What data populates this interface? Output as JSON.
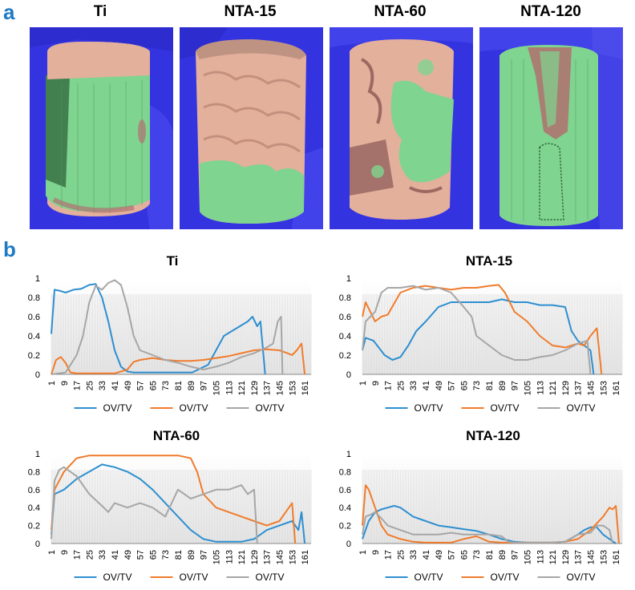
{
  "panel_a": {
    "letter": "a",
    "images": [
      {
        "title": "Ti"
      },
      {
        "title": "NTA-15"
      },
      {
        "title": "NTA-60"
      },
      {
        "title": "NTA-120"
      }
    ]
  },
  "panel_b": {
    "letter": "b"
  },
  "colors": {
    "series1": "#2e8fd0",
    "series2": "#f07c2c",
    "series3": "#a6a6a6",
    "scan_bg": "#3433e0",
    "tissue_green": "#7fd48f",
    "tissue_pink": "#e3b09c"
  },
  "chart_data": [
    {
      "type": "line",
      "title": "Ti",
      "x_ticks": [
        "1",
        "9",
        "17",
        "25",
        "33",
        "41",
        "49",
        "57",
        "65",
        "73",
        "81",
        "89",
        "97",
        "105",
        "113",
        "121",
        "129",
        "137",
        "145",
        "153",
        "161"
      ],
      "y_ticks": [
        "0",
        "0.2",
        "0.4",
        "0.6",
        "0.8",
        "1"
      ],
      "ylim": [
        0,
        1
      ],
      "xlim": [
        1,
        165
      ],
      "series": [
        {
          "name": "OV/TV",
          "x": [
            1,
            3,
            6,
            10,
            15,
            20,
            25,
            29,
            33,
            37,
            41,
            45,
            49,
            53,
            60,
            70,
            80,
            90,
            100,
            110,
            115,
            120,
            125,
            128,
            131,
            133,
            136
          ],
          "values": [
            0.42,
            0.88,
            0.87,
            0.85,
            0.88,
            0.89,
            0.93,
            0.94,
            0.8,
            0.55,
            0.25,
            0.08,
            0.03,
            0.02,
            0.02,
            0.02,
            0.02,
            0.02,
            0.1,
            0.4,
            0.45,
            0.5,
            0.55,
            0.6,
            0.5,
            0.55,
            0
          ]
        },
        {
          "name": "OV/TV",
          "x": [
            1,
            4,
            7,
            10,
            13,
            17,
            25,
            33,
            41,
            49,
            53,
            57,
            65,
            73,
            81,
            89,
            97,
            105,
            113,
            121,
            129,
            137,
            145,
            150,
            153,
            156,
            159,
            161
          ],
          "values": [
            0,
            0.15,
            0.18,
            0.12,
            0.02,
            0.01,
            0.01,
            0.01,
            0.01,
            0.05,
            0.13,
            0.15,
            0.17,
            0.15,
            0.14,
            0.14,
            0.15,
            0.17,
            0.19,
            0.22,
            0.25,
            0.26,
            0.25,
            0.22,
            0.2,
            0.25,
            0.32,
            0
          ]
        },
        {
          "name": "OV/TV",
          "x": [
            1,
            10,
            17,
            21,
            25,
            29,
            33,
            37,
            41,
            45,
            49,
            53,
            57,
            65,
            73,
            81,
            89,
            97,
            105,
            113,
            121,
            129,
            137,
            141,
            144,
            146,
            147
          ],
          "values": [
            0,
            0.02,
            0.2,
            0.4,
            0.75,
            0.92,
            0.88,
            0.95,
            0.98,
            0.93,
            0.7,
            0.4,
            0.25,
            0.2,
            0.15,
            0.12,
            0.08,
            0.05,
            0.08,
            0.12,
            0.18,
            0.22,
            0.28,
            0.32,
            0.55,
            0.6,
            0
          ]
        }
      ]
    },
    {
      "type": "line",
      "title": "NTA-15",
      "x_ticks": [
        "1",
        "9",
        "17",
        "25",
        "33",
        "41",
        "49",
        "57",
        "65",
        "73",
        "81",
        "89",
        "97",
        "105",
        "113",
        "121",
        "129",
        "137",
        "145",
        "153",
        "161"
      ],
      "y_ticks": [
        "0",
        "0.2",
        "0.4",
        "0.6",
        "0.8",
        "1"
      ],
      "ylim": [
        0,
        1
      ],
      "xlim": [
        1,
        165
      ],
      "series": [
        {
          "name": "OV/TV",
          "x": [
            1,
            3,
            8,
            15,
            20,
            25,
            30,
            35,
            41,
            49,
            57,
            65,
            73,
            81,
            89,
            97,
            105,
            113,
            121,
            129,
            133,
            137,
            141,
            145,
            147
          ],
          "values": [
            0.25,
            0.38,
            0.35,
            0.2,
            0.15,
            0.18,
            0.3,
            0.45,
            0.55,
            0.7,
            0.75,
            0.75,
            0.75,
            0.75,
            0.78,
            0.75,
            0.75,
            0.72,
            0.72,
            0.7,
            0.45,
            0.35,
            0.3,
            0.25,
            0
          ]
        },
        {
          "name": "OV/TV",
          "x": [
            1,
            3,
            6,
            9,
            13,
            17,
            25,
            33,
            41,
            49,
            57,
            65,
            73,
            81,
            87,
            91,
            97,
            105,
            113,
            121,
            129,
            137,
            141,
            145,
            149,
            152
          ],
          "values": [
            0.6,
            0.75,
            0.65,
            0.55,
            0.6,
            0.62,
            0.85,
            0.9,
            0.92,
            0.9,
            0.88,
            0.9,
            0.9,
            0.92,
            0.93,
            0.85,
            0.65,
            0.55,
            0.4,
            0.3,
            0.28,
            0.32,
            0.3,
            0.4,
            0.48,
            0
          ]
        },
        {
          "name": "OV/TV",
          "x": [
            1,
            3,
            6,
            9,
            13,
            17,
            25,
            33,
            41,
            49,
            57,
            65,
            70,
            73,
            77,
            81,
            89,
            97,
            105,
            113,
            121,
            129,
            137,
            143,
            145
          ],
          "values": [
            0.25,
            0.55,
            0.6,
            0.65,
            0.85,
            0.9,
            0.9,
            0.92,
            0.88,
            0.9,
            0.85,
            0.7,
            0.6,
            0.4,
            0.35,
            0.3,
            0.2,
            0.15,
            0.15,
            0.18,
            0.2,
            0.25,
            0.32,
            0.35,
            0
          ]
        }
      ]
    },
    {
      "type": "line",
      "title": "NTA-60",
      "x_ticks": [
        "1",
        "9",
        "17",
        "25",
        "33",
        "41",
        "49",
        "57",
        "65",
        "73",
        "81",
        "89",
        "97",
        "105",
        "113",
        "121",
        "129",
        "137",
        "145",
        "153",
        "161"
      ],
      "y_ticks": [
        "0",
        "0.2",
        "0.4",
        "0.6",
        "0.8",
        "1"
      ],
      "ylim": [
        0,
        1
      ],
      "xlim": [
        1,
        165
      ],
      "series": [
        {
          "name": "OV/TV",
          "x": [
            1,
            3,
            9,
            17,
            25,
            33,
            41,
            49,
            57,
            65,
            73,
            81,
            89,
            97,
            105,
            113,
            121,
            129,
            137,
            145,
            153,
            157,
            159,
            161
          ],
          "values": [
            0.1,
            0.55,
            0.6,
            0.72,
            0.8,
            0.88,
            0.85,
            0.8,
            0.72,
            0.6,
            0.45,
            0.3,
            0.15,
            0.05,
            0.02,
            0.02,
            0.02,
            0.05,
            0.15,
            0.2,
            0.25,
            0.15,
            0.35,
            0
          ]
        },
        {
          "name": "OV/TV",
          "x": [
            1,
            3,
            9,
            17,
            25,
            33,
            41,
            49,
            57,
            65,
            73,
            81,
            89,
            93,
            97,
            105,
            113,
            121,
            129,
            137,
            145,
            149,
            153,
            155
          ],
          "values": [
            0.15,
            0.6,
            0.8,
            0.95,
            0.98,
            0.98,
            0.98,
            0.98,
            0.98,
            0.98,
            0.98,
            0.98,
            0.95,
            0.8,
            0.55,
            0.4,
            0.35,
            0.3,
            0.25,
            0.2,
            0.25,
            0.35,
            0.45,
            0
          ]
        },
        {
          "name": "OV/TV",
          "x": [
            1,
            3,
            6,
            9,
            13,
            17,
            25,
            33,
            37,
            41,
            49,
            57,
            65,
            73,
            81,
            89,
            97,
            105,
            113,
            121,
            125,
            129,
            131
          ],
          "values": [
            0.05,
            0.7,
            0.82,
            0.85,
            0.8,
            0.75,
            0.55,
            0.42,
            0.35,
            0.45,
            0.4,
            0.45,
            0.4,
            0.3,
            0.6,
            0.5,
            0.55,
            0.6,
            0.6,
            0.65,
            0.55,
            0.6,
            0
          ]
        }
      ]
    },
    {
      "type": "line",
      "title": "NTA-120",
      "x_ticks": [
        "1",
        "9",
        "17",
        "25",
        "33",
        "41",
        "49",
        "57",
        "65",
        "73",
        "81",
        "89",
        "97",
        "105",
        "113",
        "121",
        "129",
        "137",
        "145",
        "153",
        "161"
      ],
      "y_ticks": [
        "0",
        "0.2",
        "0.4",
        "0.6",
        "0.8",
        "1"
      ],
      "ylim": [
        0,
        1
      ],
      "xlim": [
        1,
        165
      ],
      "series": [
        {
          "name": "OV/TV",
          "x": [
            1,
            5,
            9,
            13,
            17,
            21,
            25,
            33,
            41,
            49,
            57,
            65,
            73,
            81,
            89,
            97,
            105,
            113,
            121,
            129,
            137,
            141,
            145,
            149,
            153,
            157,
            161
          ],
          "values": [
            0.05,
            0.25,
            0.35,
            0.38,
            0.4,
            0.42,
            0.4,
            0.3,
            0.25,
            0.2,
            0.18,
            0.16,
            0.14,
            0.1,
            0.05,
            0.02,
            0.01,
            0.01,
            0.01,
            0.02,
            0.1,
            0.15,
            0.18,
            0.18,
            0.1,
            0.05,
            0
          ]
        },
        {
          "name": "OV/TV",
          "x": [
            1,
            3,
            5,
            9,
            13,
            17,
            25,
            33,
            41,
            49,
            57,
            65,
            73,
            81,
            89,
            97,
            105,
            113,
            121,
            129,
            137,
            145,
            153,
            157,
            159,
            161,
            163
          ],
          "values": [
            0.2,
            0.65,
            0.6,
            0.4,
            0.2,
            0.1,
            0.05,
            0.02,
            0.01,
            0.01,
            0.01,
            0.05,
            0.08,
            0.02,
            0.01,
            0.01,
            0.01,
            0.01,
            0.01,
            0.02,
            0.05,
            0.15,
            0.3,
            0.4,
            0.38,
            0.42,
            0
          ]
        },
        {
          "name": "OV/TV",
          "x": [
            1,
            3,
            6,
            9,
            13,
            17,
            25,
            33,
            41,
            49,
            57,
            65,
            73,
            81,
            89,
            93,
            97,
            105,
            113,
            121,
            129,
            137,
            145,
            149,
            153,
            157,
            159
          ],
          "values": [
            0.1,
            0.3,
            0.32,
            0.35,
            0.28,
            0.2,
            0.15,
            0.1,
            0.1,
            0.1,
            0.12,
            0.1,
            0.1,
            0.1,
            0.08,
            0.02,
            0.01,
            0.01,
            0.01,
            0.01,
            0.02,
            0.1,
            0.12,
            0.2,
            0.2,
            0.15,
            0
          ]
        }
      ]
    }
  ]
}
